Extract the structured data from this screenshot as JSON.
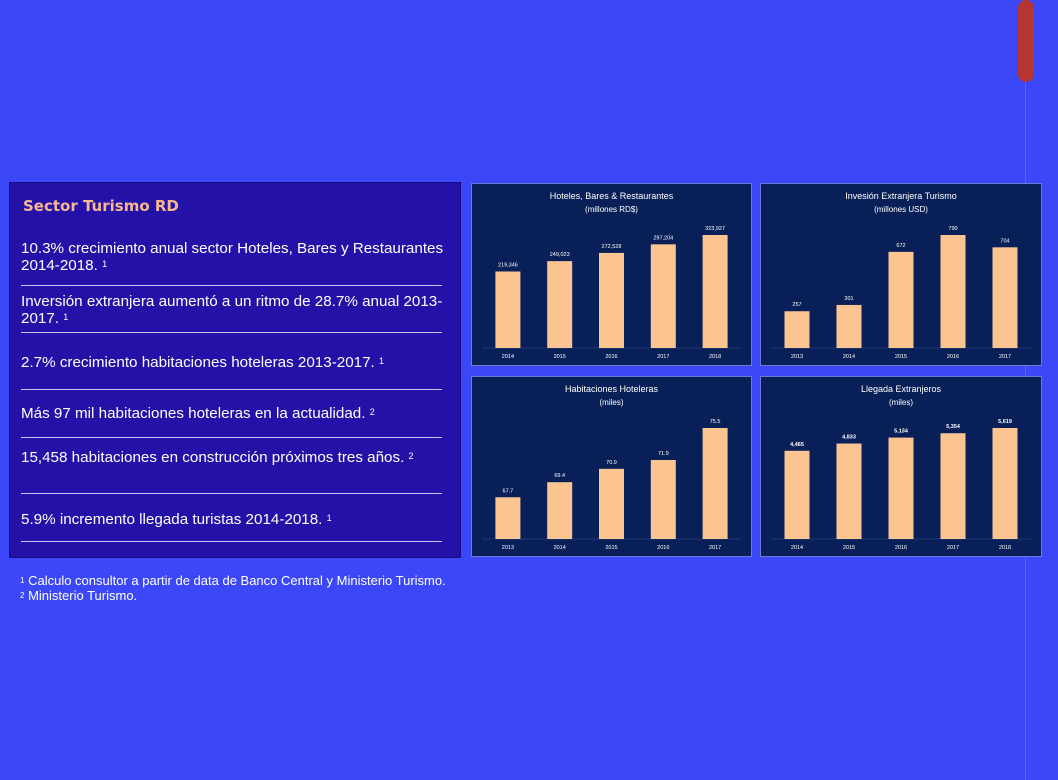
{
  "panel": {
    "title": "Sector Turismo RD",
    "bullets": [
      {
        "text": "10.3% crecimiento anual sector Hoteles, Bares y Restaurantes 2014-2018.",
        "sup": "1"
      },
      {
        "text": "Inversión extranjera aumentó a un ritmo de 28.7% anual 2013-2017.",
        "sup": "1"
      },
      {
        "text": "2.7% crecimiento habitaciones hoteleras 2013-2017.",
        "sup": "1"
      },
      {
        "text": "Más 97 mil habitaciones hoteleras en la actualidad.",
        "sup": "2"
      },
      {
        "text": "15,458 habitaciones en construcción próximos tres años.",
        "sup": "2"
      },
      {
        "text": "5.9% incremento  llegada turistas 2014-2018.",
        "sup": "1"
      }
    ]
  },
  "footnotes": [
    {
      "sup": "1",
      "text": "Calculo consultor a partir de data de Banco Central y Ministerio Turismo."
    },
    {
      "sup": "2",
      "text": "Ministerio Turismo."
    }
  ],
  "colors": {
    "bar": "#fbc491",
    "chart_bg": "#082057",
    "page_bg": "#3c48f8",
    "panel_bg": "#2411a7",
    "title_accent": "#f7b68f"
  },
  "chart_data": [
    {
      "type": "bar",
      "title": "Hoteles, Bares & Restaurantes",
      "subtitle": "(millones RD$)",
      "categories": [
        "2014",
        "2015",
        "2016",
        "2017",
        "2018"
      ],
      "values": [
        219346,
        249023,
        272528,
        297204,
        323927
      ],
      "labels": [
        "219,346",
        "249,023",
        "272,528",
        "297,204",
        "323,927"
      ],
      "bold_labels": false,
      "ylim": [
        0,
        323927
      ]
    },
    {
      "type": "bar",
      "title": "Invesión Extranjera Turismo",
      "subtitle": "(millones USD)",
      "categories": [
        "2013",
        "2014",
        "2015",
        "2016",
        "2017"
      ],
      "values": [
        257,
        301,
        672,
        790,
        704
      ],
      "labels": [
        "257",
        "301",
        "672",
        "790",
        "704"
      ],
      "bold_labels": false,
      "ylim": [
        0,
        790
      ]
    },
    {
      "type": "bar",
      "title": "Habitaciones Hoteleras",
      "subtitle": "(miles)",
      "categories": [
        "2013",
        "2014",
        "2015",
        "2016",
        "2017"
      ],
      "values": [
        67.7,
        69.4,
        70.9,
        71.9,
        75.5
      ],
      "labels": [
        "67.7",
        "69.4",
        "70.9",
        "71.9",
        "75.5"
      ],
      "bold_labels": false,
      "ylim": [
        63,
        75.5
      ]
    },
    {
      "type": "bar",
      "title": "Llegada Extranjeros",
      "subtitle": "(miles)",
      "categories": [
        "2014",
        "2015",
        "2016",
        "2017",
        "2018"
      ],
      "values": [
        4465,
        4833,
        5134,
        5354,
        5619
      ],
      "labels": [
        "4,465",
        "4,833",
        "5,134",
        "5,354",
        "5,619"
      ],
      "bold_labels": true,
      "ylim": [
        0,
        5619
      ]
    }
  ]
}
